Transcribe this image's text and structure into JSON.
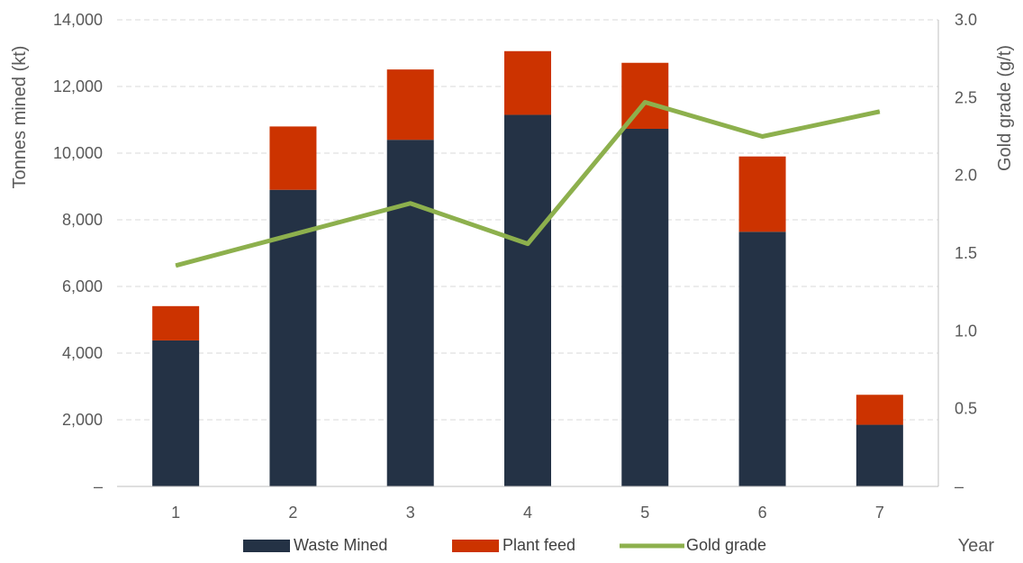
{
  "chart_data": {
    "type": "bar",
    "stacked": true,
    "categories": [
      "1",
      "2",
      "3",
      "4",
      "5",
      "6",
      "7"
    ],
    "series": [
      {
        "name": "Waste Mined",
        "type": "bar",
        "axis": "left",
        "color": "#243245",
        "values": [
          4380,
          8900,
          10400,
          11150,
          10730,
          7640,
          1850
        ]
      },
      {
        "name": "Plant feed",
        "type": "bar",
        "axis": "left",
        "color": "#cc3300",
        "values": [
          1030,
          1900,
          2110,
          1910,
          1980,
          2260,
          900
        ]
      },
      {
        "name": "Gold grade",
        "type": "line",
        "axis": "right",
        "color": "#8db04d",
        "values": [
          1.42,
          1.62,
          1.82,
          1.56,
          2.47,
          2.25,
          2.41
        ]
      }
    ],
    "xlabel": "Year",
    "ylabel": "Tonnes mined (kt)",
    "y2label": "Gold grade (g/t)",
    "ylim": [
      0,
      14000
    ],
    "y2lim": [
      0,
      3.0
    ],
    "yticks": [
      "–",
      "2,000",
      "4,000",
      "6,000",
      "8,000",
      "10,000",
      "12,000",
      "14,000"
    ],
    "y2ticks": [
      "–",
      "0.5",
      "1.0",
      "1.5",
      "2.0",
      "2.5",
      "3.0"
    ],
    "grid": true,
    "legend_position": "bottom"
  }
}
